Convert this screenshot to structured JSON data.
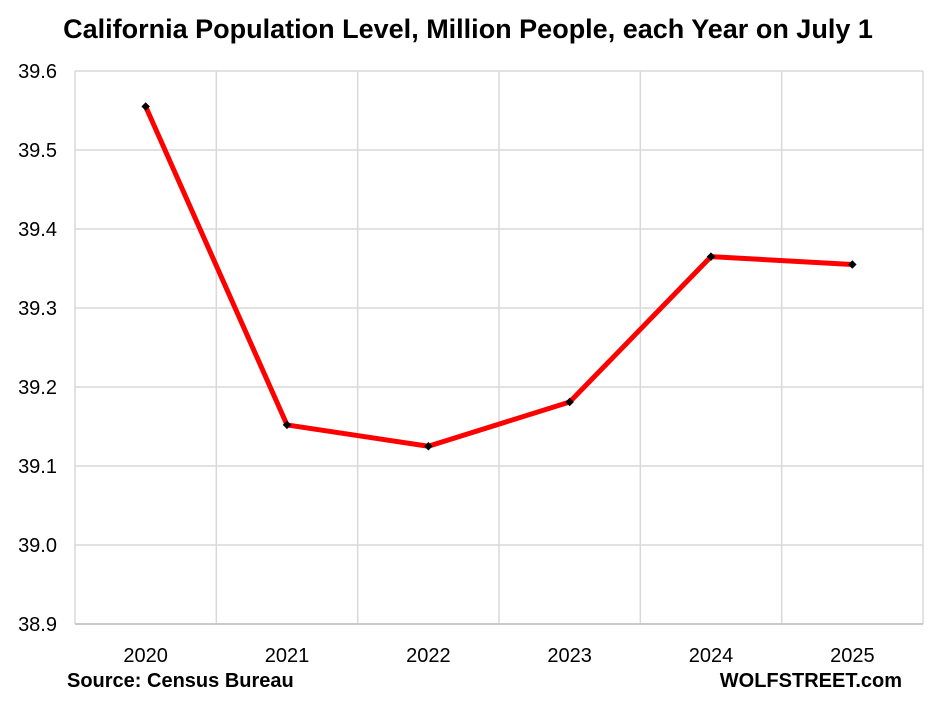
{
  "chart_data": {
    "type": "line",
    "title": "California Population Level, Million People, each Year on July 1",
    "xlabel": "",
    "ylabel": "",
    "categories": [
      "2020",
      "2021",
      "2022",
      "2023",
      "2024",
      "2025"
    ],
    "series": [
      {
        "values": [
          39.555,
          39.152,
          39.125,
          39.181,
          39.365,
          39.355
        ]
      }
    ],
    "ylim": [
      38.9,
      39.6
    ],
    "yticks": [
      "38.9",
      "39.0",
      "39.1",
      "39.2",
      "39.3",
      "39.4",
      "39.5",
      "39.6"
    ],
    "grid": true,
    "legend": "none",
    "line_color": "#ff0000",
    "marker_color": "#000000"
  },
  "footer": {
    "source": "Source: Census Bureau",
    "brand": "WOLFSTREET.com"
  }
}
